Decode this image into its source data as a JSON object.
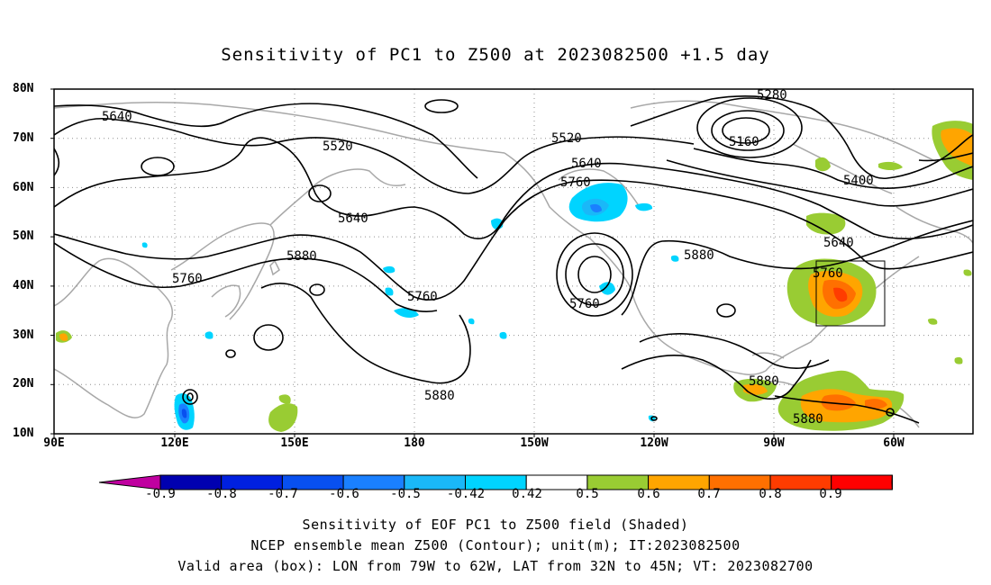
{
  "title": "Sensitivity of PC1 to Z500 at 2023082500 +1.5 day",
  "lat_labels": [
    "80N",
    "70N",
    "60N",
    "50N",
    "40N",
    "30N",
    "20N",
    "10N"
  ],
  "lon_labels": [
    "90E",
    "120E",
    "150E",
    "180",
    "150W",
    "120W",
    "90W",
    "60W"
  ],
  "contour_labels": [
    "5640",
    "5520",
    "5520",
    "5640",
    "5760",
    "5640",
    "5280",
    "5160",
    "5400",
    "5640",
    "5760",
    "5880",
    "5760",
    "5760",
    "5880",
    "5880",
    "5880",
    "5880"
  ],
  "colorbar": {
    "ticks": [
      "-0.9",
      "-0.8",
      "-0.7",
      "-0.6",
      "-0.5",
      "-0.42",
      "0.42",
      "0.5",
      "0.6",
      "0.7",
      "0.8",
      "0.9"
    ],
    "colors": [
      "#c000a0",
      "#0000b0",
      "#0020e0",
      "#0850f0",
      "#1a80ff",
      "#1ab8f8",
      "#00d4ff",
      "#ffffff",
      "#99cc33",
      "#ffa500",
      "#ff7000",
      "#ff3c00",
      "#ff0000",
      "#ff99cc"
    ]
  },
  "caption": {
    "line1": "Sensitivity of EOF PC1 to Z500 field (Shaded)",
    "line2": "NCEP ensemble mean Z500 (Contour); unit(m); IT:2023082500",
    "line3": "Valid area (box): LON from 79W to 62W, LAT from 32N to 45N; VT: 2023082700"
  }
}
